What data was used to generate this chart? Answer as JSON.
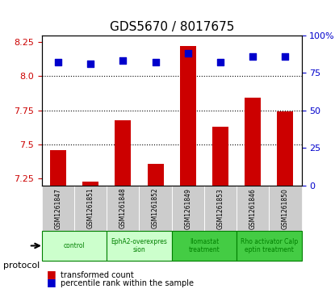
{
  "title": "GDS5670 / 8017675",
  "samples": [
    "GSM1261847",
    "GSM1261851",
    "GSM1261848",
    "GSM1261852",
    "GSM1261849",
    "GSM1261853",
    "GSM1261846",
    "GSM1261850"
  ],
  "bar_values": [
    7.46,
    7.23,
    7.68,
    7.36,
    8.22,
    7.63,
    7.84,
    7.74
  ],
  "scatter_values": [
    82,
    81,
    83,
    82,
    88,
    82,
    86,
    86
  ],
  "ylim_left": [
    7.2,
    8.3
  ],
  "ylim_right": [
    0,
    100
  ],
  "yticks_left": [
    7.25,
    7.5,
    7.75,
    8.0,
    8.25
  ],
  "yticks_right": [
    0,
    25,
    50,
    75,
    100
  ],
  "bar_color": "#cc0000",
  "scatter_color": "#0000cc",
  "grid_lines": [
    7.5,
    7.75,
    8.0
  ],
  "protocols": [
    {
      "label": "control",
      "color": "#ccffcc",
      "start": 0,
      "end": 2
    },
    {
      "label": "EphA2-overexpres\nsion",
      "color": "#ccffcc",
      "start": 2,
      "end": 4
    },
    {
      "label": "Ilomastat\ntreatment",
      "color": "#44cc44",
      "start": 4,
      "end": 6
    },
    {
      "label": "Rho activator Calp\neptin treatment",
      "color": "#44cc44",
      "start": 6,
      "end": 8
    }
  ],
  "legend_bar_label": "transformed count",
  "legend_scatter_label": "percentile rank within the sample",
  "protocol_label": "protocol",
  "xlabel_color": "#cc0000",
  "right_axis_color": "#0000cc",
  "bar_bottom": 7.2
}
